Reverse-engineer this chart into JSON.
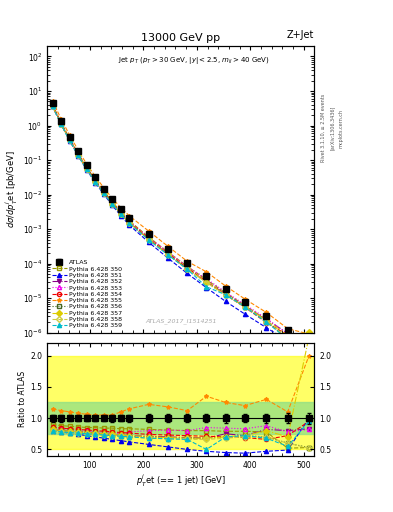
{
  "title_center": "13000 GeV pp",
  "title_right": "Z+Jet",
  "annotation": "Jet $p_T$ ($p_T > 30$ GeV, $|y| < 2.5$, $m_{ll} > 40$ GeV)",
  "watermark": "ATLAS_2017_I1514251",
  "rivet_text": "Rivet 3.1.10, ≥ 2.5M events",
  "arxiv_text": "[arXiv:1306.3436]",
  "mcplots_text": "mcplots.cern.ch",
  "ylabel_main": "$d\\sigma/dp_T^{j}$et [pb/GeV]",
  "ylabel_ratio": "Ratio to ATLAS",
  "xlabel": "$p_T^{j}$et (== 1 jet) [GeV]",
  "pt_values": [
    30,
    46,
    62,
    78,
    94,
    110,
    126,
    142,
    158,
    174,
    210,
    246,
    282,
    318,
    354,
    390,
    430,
    470,
    510
  ],
  "atlas_values": [
    4.5,
    1.4,
    0.48,
    0.18,
    0.072,
    0.032,
    0.015,
    0.0074,
    0.0038,
    0.0021,
    0.00072,
    0.00027,
    0.000105,
    4.3e-05,
    1.8e-05,
    7.9e-06,
    3e-06,
    1.2e-06,
    4.6e-07
  ],
  "atlas_errors": [
    0.25,
    0.08,
    0.025,
    0.009,
    0.0038,
    0.0017,
    0.0008,
    0.0004,
    0.0002,
    0.00012,
    4.2e-05,
    1.6e-05,
    6.5e-06,
    2.8e-06,
    1.3e-06,
    5.5e-07,
    2.2e-07,
    9e-08,
    4e-08
  ],
  "series": [
    {
      "label": "Pythia 6.428 350",
      "color": "#999900",
      "marker": "s",
      "markerfacecolor": "none",
      "linestyle": "--",
      "scale": [
        0.9,
        0.88,
        0.87,
        0.86,
        0.85,
        0.85,
        0.84,
        0.84,
        0.83,
        0.83,
        0.82,
        0.81,
        0.8,
        0.8,
        0.79,
        0.79,
        0.78,
        0.52,
        0.53
      ]
    },
    {
      "label": "Pythia 6.428 351",
      "color": "#0000ee",
      "marker": "^",
      "markerfacecolor": "#0000ee",
      "linestyle": "--",
      "scale": [
        0.8,
        0.78,
        0.76,
        0.74,
        0.72,
        0.7,
        0.68,
        0.66,
        0.64,
        0.62,
        0.58,
        0.54,
        0.5,
        0.47,
        0.45,
        0.44,
        0.47,
        0.49,
        1.0
      ]
    },
    {
      "label": "Pythia 6.428 352",
      "color": "#880088",
      "marker": "v",
      "markerfacecolor": "#880088",
      "linestyle": "-.",
      "scale": [
        0.82,
        0.8,
        0.79,
        0.78,
        0.77,
        0.76,
        0.75,
        0.74,
        0.73,
        0.72,
        0.71,
        0.7,
        0.69,
        0.68,
        0.75,
        0.72,
        0.82,
        0.8,
        0.83
      ]
    },
    {
      "label": "Pythia 6.428 353",
      "color": "#ee00ee",
      "marker": "^",
      "markerfacecolor": "none",
      "linestyle": ":",
      "scale": [
        0.84,
        0.82,
        0.81,
        0.8,
        0.79,
        0.78,
        0.77,
        0.76,
        0.75,
        0.78,
        0.8,
        0.81,
        0.8,
        0.85,
        0.84,
        0.83,
        0.88,
        0.78,
        0.82
      ]
    },
    {
      "label": "Pythia 6.428 354",
      "color": "#ee0000",
      "marker": "o",
      "markerfacecolor": "none",
      "linestyle": "--",
      "scale": [
        0.86,
        0.84,
        0.83,
        0.82,
        0.81,
        0.8,
        0.79,
        0.78,
        0.77,
        0.76,
        0.74,
        0.73,
        0.72,
        0.71,
        0.7,
        0.69,
        0.66,
        0.72,
        0.95
      ]
    },
    {
      "label": "Pythia 6.428 355",
      "color": "#ff8800",
      "marker": "*",
      "markerfacecolor": "#ff8800",
      "linestyle": "--",
      "scale": [
        1.15,
        1.12,
        1.1,
        1.08,
        1.06,
        1.05,
        1.05,
        1.05,
        1.1,
        1.15,
        1.22,
        1.18,
        1.12,
        1.35,
        1.25,
        1.2,
        1.3,
        1.1,
        2.0
      ]
    },
    {
      "label": "Pythia 6.428 356",
      "color": "#446622",
      "marker": "s",
      "markerfacecolor": "none",
      "linestyle": ":",
      "scale": [
        0.82,
        0.8,
        0.79,
        0.78,
        0.77,
        0.76,
        0.74,
        0.73,
        0.72,
        0.71,
        0.7,
        0.69,
        0.68,
        0.68,
        0.7,
        0.72,
        0.7,
        0.6,
        0.53
      ]
    },
    {
      "label": "Pythia 6.428 357",
      "color": "#ddcc00",
      "marker": "D",
      "markerfacecolor": "#ddcc00",
      "linestyle": "-.",
      "scale": [
        0.82,
        0.8,
        0.79,
        0.78,
        0.77,
        0.76,
        0.75,
        0.74,
        0.73,
        0.72,
        0.7,
        0.69,
        0.68,
        0.68,
        0.7,
        0.72,
        0.8,
        0.7,
        2.3
      ]
    },
    {
      "label": "Pythia 6.428 358",
      "color": "#cccc44",
      "marker": "D",
      "markerfacecolor": "none",
      "linestyle": "--",
      "scale": [
        0.8,
        0.78,
        0.77,
        0.76,
        0.75,
        0.74,
        0.73,
        0.72,
        0.71,
        0.7,
        0.68,
        0.67,
        0.66,
        0.66,
        0.68,
        0.7,
        0.7,
        0.6,
        0.52
      ]
    },
    {
      "label": "Pythia 6.428 359",
      "color": "#00bbcc",
      "marker": "^",
      "markerfacecolor": "#00bbcc",
      "linestyle": "--",
      "scale": [
        0.8,
        0.78,
        0.77,
        0.76,
        0.75,
        0.74,
        0.73,
        0.72,
        0.71,
        0.7,
        0.68,
        0.67,
        0.66,
        0.5,
        0.7,
        0.72,
        0.68,
        0.55,
        0.95
      ]
    }
  ],
  "band_yellow": {
    "ymin": 0.5,
    "ymax": 2.0
  },
  "band_green": {
    "ymin": 0.75,
    "ymax": 1.25
  },
  "xlim": [
    20,
    520
  ],
  "ylim_main": [
    1e-06,
    200
  ],
  "ylim_ratio": [
    0.4,
    2.2
  ],
  "ratio_yticks": [
    0.5,
    1.0,
    1.5,
    2.0
  ]
}
